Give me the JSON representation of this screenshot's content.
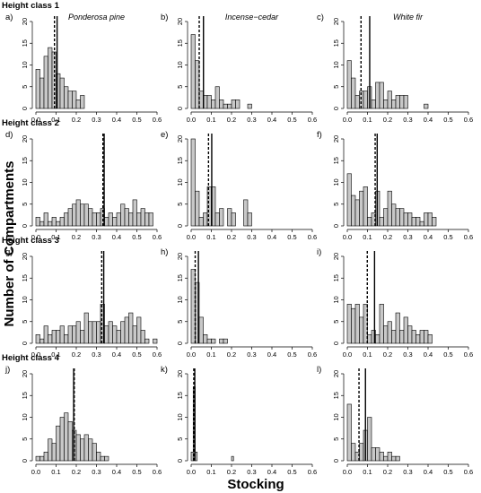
{
  "figure": {
    "y_axis_title": "Number of Compartments",
    "x_axis_title": "Stocking",
    "row_titles": [
      "Height class 1",
      "Height class 2",
      "Height class 3",
      "Height class 4"
    ],
    "species": [
      "Ponderosa pine",
      "Incense−cedar",
      "White fir"
    ]
  },
  "chart_data": [
    {
      "type": "bar",
      "panel": "a)",
      "row_title": "Height class 1",
      "species_label": "Ponderosa pine",
      "bin_width": 0.02,
      "bin_start": 0.0,
      "xlim": [
        0,
        0.6
      ],
      "ylim": [
        0,
        20
      ],
      "xticks": [
        0.0,
        0.1,
        0.2,
        0.3,
        0.4,
        0.5,
        0.6
      ],
      "yticks": [
        0,
        5,
        10,
        15,
        20
      ],
      "values": [
        9,
        7,
        12,
        14,
        13,
        8,
        7,
        5,
        4,
        4,
        2,
        3,
        0,
        0,
        0,
        0,
        0,
        0,
        0,
        0,
        0,
        0,
        0,
        0,
        0,
        0,
        0,
        0,
        0,
        0
      ],
      "mean_line": 0.105,
      "median_line": 0.092
    },
    {
      "type": "bar",
      "panel": "b)",
      "species_label": "Incense−cedar",
      "bin_width": 0.02,
      "bin_start": 0.0,
      "xlim": [
        0,
        0.6
      ],
      "ylim": [
        0,
        20
      ],
      "xticks": [
        0.0,
        0.1,
        0.2,
        0.3,
        0.4,
        0.5,
        0.6
      ],
      "yticks": [
        0,
        5,
        10,
        15,
        20
      ],
      "values": [
        17,
        11,
        4,
        3,
        3,
        2,
        5,
        2,
        1,
        1,
        2,
        2,
        0,
        0,
        1,
        0,
        0,
        0,
        0,
        0,
        0,
        0,
        0,
        0,
        0,
        0,
        0,
        0,
        0,
        0
      ],
      "mean_line": 0.061,
      "median_line": 0.04
    },
    {
      "type": "bar",
      "panel": "c)",
      "species_label": "White fir",
      "bin_width": 0.02,
      "bin_start": 0.0,
      "xlim": [
        0,
        0.6
      ],
      "ylim": [
        0,
        20
      ],
      "xticks": [
        0.0,
        0.1,
        0.2,
        0.3,
        0.4,
        0.5,
        0.6
      ],
      "yticks": [
        0,
        5,
        10,
        15,
        20
      ],
      "values": [
        11,
        7,
        3,
        4,
        4,
        5,
        2,
        6,
        6,
        2,
        4,
        2,
        3,
        3,
        3,
        0,
        0,
        0,
        0,
        1,
        0,
        0,
        0,
        0,
        0,
        0,
        0,
        0,
        0,
        0
      ],
      "mean_line": 0.111,
      "median_line": 0.068
    },
    {
      "type": "bar",
      "panel": "d)",
      "row_title": "Height class 2",
      "bin_width": 0.02,
      "bin_start": 0.0,
      "xlim": [
        0,
        0.6
      ],
      "ylim": [
        0,
        20
      ],
      "xticks": [
        0.0,
        0.1,
        0.2,
        0.3,
        0.4,
        0.5,
        0.6
      ],
      "yticks": [
        0,
        5,
        10,
        15,
        20
      ],
      "values": [
        2,
        1,
        3,
        1,
        2,
        1,
        2,
        3,
        4,
        5,
        6,
        5,
        5,
        4,
        3,
        3,
        4,
        2,
        3,
        2,
        3,
        5,
        4,
        3,
        6,
        3,
        4,
        3,
        3,
        0
      ],
      "mean_line": 0.338,
      "median_line": 0.332
    },
    {
      "type": "bar",
      "panel": "e)",
      "bin_width": 0.02,
      "bin_start": 0.0,
      "xlim": [
        0,
        0.6
      ],
      "ylim": [
        0,
        20
      ],
      "xticks": [
        0.0,
        0.1,
        0.2,
        0.3,
        0.4,
        0.5,
        0.6
      ],
      "yticks": [
        0,
        5,
        10,
        15,
        20
      ],
      "values": [
        20,
        8,
        2,
        3,
        9,
        9,
        3,
        4,
        0,
        4,
        3,
        0,
        0,
        6,
        3,
        0,
        0,
        0,
        0,
        0,
        0,
        0,
        0,
        0,
        0,
        0,
        0,
        0,
        0,
        0
      ],
      "mean_line": 0.102,
      "median_line": 0.086
    },
    {
      "type": "bar",
      "panel": "f)",
      "bin_width": 0.02,
      "bin_start": 0.0,
      "xlim": [
        0,
        0.6
      ],
      "ylim": [
        0,
        20
      ],
      "xticks": [
        0.0,
        0.1,
        0.2,
        0.3,
        0.4,
        0.5,
        0.6
      ],
      "yticks": [
        0,
        5,
        10,
        15,
        20
      ],
      "values": [
        12,
        7,
        6,
        8,
        9,
        2,
        3,
        8,
        2,
        4,
        8,
        5,
        4,
        4,
        3,
        3,
        2,
        2,
        1,
        3,
        3,
        2,
        0,
        0,
        0,
        0,
        0,
        0,
        0,
        0
      ],
      "mean_line": 0.148,
      "median_line": 0.138
    },
    {
      "type": "bar",
      "panel": "g)",
      "row_title": "Height class 3",
      "bin_width": 0.02,
      "bin_start": 0.0,
      "xlim": [
        0,
        0.6
      ],
      "ylim": [
        0,
        20
      ],
      "xticks": [
        0.0,
        0.1,
        0.2,
        0.3,
        0.4,
        0.5,
        0.6
      ],
      "yticks": [
        0,
        5,
        10,
        15,
        20
      ],
      "values": [
        2,
        1,
        4,
        2,
        3,
        3,
        4,
        2,
        4,
        4,
        5,
        3,
        7,
        5,
        5,
        5,
        9,
        4,
        5,
        4,
        3,
        5,
        6,
        7,
        4,
        6,
        3,
        1,
        0,
        1
      ],
      "mean_line": 0.336,
      "median_line": 0.326
    },
    {
      "type": "bar",
      "panel": "h)",
      "bin_width": 0.02,
      "bin_start": 0.0,
      "xlim": [
        0,
        0.6
      ],
      "ylim": [
        0,
        20
      ],
      "xticks": [
        0.0,
        0.1,
        0.2,
        0.3,
        0.4,
        0.5,
        0.6
      ],
      "yticks": [
        0,
        5,
        10,
        15,
        20
      ],
      "values": [
        17,
        14,
        6,
        2,
        1,
        1,
        0,
        1,
        1,
        0,
        0,
        0,
        0,
        0,
        0,
        0,
        0,
        0,
        0,
        0,
        0,
        0,
        0,
        0,
        0,
        0,
        0,
        0,
        0,
        0
      ],
      "mean_line": 0.036,
      "median_line": 0.02
    },
    {
      "type": "bar",
      "panel": "i)",
      "bin_width": 0.02,
      "bin_start": 0.0,
      "xlim": [
        0,
        0.6
      ],
      "ylim": [
        0,
        20
      ],
      "xticks": [
        0.0,
        0.1,
        0.2,
        0.3,
        0.4,
        0.5,
        0.6
      ],
      "yticks": [
        0,
        5,
        10,
        15,
        20
      ],
      "values": [
        9,
        8,
        9,
        6,
        9,
        2,
        3,
        2,
        9,
        4,
        5,
        3,
        7,
        3,
        6,
        4,
        3,
        2,
        3,
        3,
        2,
        0,
        0,
        0,
        0,
        0,
        0,
        0,
        0,
        0
      ],
      "mean_line": 0.135,
      "median_line": 0.099
    },
    {
      "type": "bar",
      "panel": "j)",
      "row_title": "Height class 4",
      "bin_width": 0.02,
      "bin_start": 0.0,
      "xlim": [
        0,
        0.6
      ],
      "ylim": [
        0,
        20
      ],
      "xticks": [
        0.0,
        0.1,
        0.2,
        0.3,
        0.4,
        0.5,
        0.6
      ],
      "yticks": [
        0,
        5,
        10,
        15,
        20
      ],
      "values": [
        1,
        1,
        2,
        5,
        4,
        8,
        10,
        11,
        9,
        7,
        6,
        5,
        6,
        5,
        4,
        2,
        1,
        1,
        0,
        0,
        0,
        0,
        0,
        0,
        0,
        0,
        0,
        0,
        0,
        0
      ],
      "mean_line": 0.187,
      "median_line": 0.19
    },
    {
      "type": "bar",
      "panel": "k)",
      "bin_width": 0.01,
      "bin_start": 0.0,
      "xlim": [
        0,
        0.6
      ],
      "ylim": [
        0,
        20
      ],
      "xticks": [
        0.0,
        0.1,
        0.2,
        0.3,
        0.4,
        0.5,
        0.6
      ],
      "yticks": [
        0,
        5,
        10,
        15,
        20
      ],
      "values": [
        2,
        17,
        2,
        0,
        0,
        0,
        0,
        0,
        0,
        0,
        0,
        0,
        0,
        0,
        0,
        0,
        0,
        0,
        0,
        0,
        1,
        0,
        0,
        0,
        0,
        0,
        0,
        0,
        0,
        0
      ],
      "mean_line": 0.018,
      "median_line": 0.013
    },
    {
      "type": "bar",
      "panel": "l)",
      "bin_width": 0.02,
      "bin_start": 0.0,
      "xlim": [
        0,
        0.6
      ],
      "ylim": [
        0,
        20
      ],
      "xticks": [
        0.0,
        0.1,
        0.2,
        0.3,
        0.4,
        0.5,
        0.6
      ],
      "yticks": [
        0,
        5,
        10,
        15,
        20
      ],
      "values": [
        13,
        4,
        2,
        4,
        7,
        10,
        3,
        3,
        2,
        1,
        2,
        1,
        1,
        0,
        0,
        0,
        0,
        0,
        0,
        0,
        0,
        0,
        0,
        0,
        0,
        0,
        0,
        0,
        0,
        0
      ],
      "mean_line": 0.09,
      "median_line": 0.058
    }
  ]
}
